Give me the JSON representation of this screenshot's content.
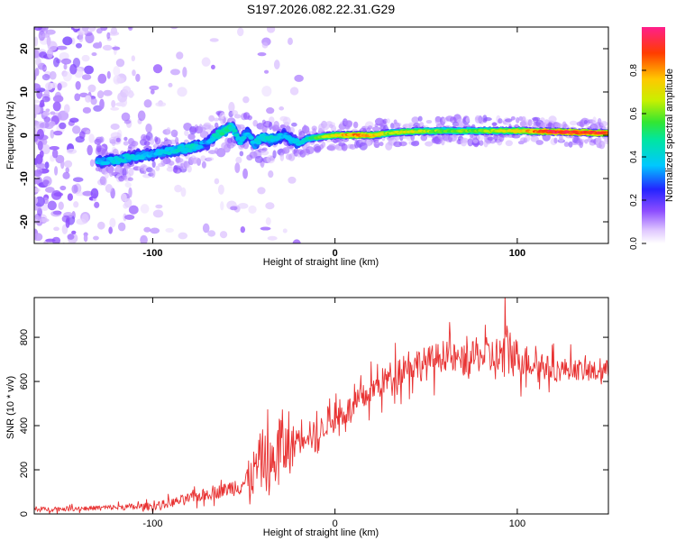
{
  "title": "S197.2026.082.22.31.G29",
  "chart_data": [
    {
      "type": "heatmap",
      "xlabel": "Height of straight line (km)",
      "ylabel": "Frequency (Hz)",
      "xlim": [
        -165,
        150
      ],
      "ylim": [
        -25,
        25
      ],
      "x_ticks": [
        -100,
        0,
        100
      ],
      "y_ticks": [
        -20,
        -10,
        0,
        10,
        20
      ],
      "ridge": {
        "x": [
          -128,
          -118,
          -108,
          -98,
          -88,
          -78,
          -70,
          -66,
          -60,
          -56,
          -52,
          -48,
          -44,
          -40,
          -36,
          -32,
          -28,
          -24,
          -20,
          -15,
          -10,
          0,
          10,
          20,
          30,
          40,
          60,
          80,
          100,
          120,
          150
        ],
        "freq": [
          -6,
          -5.5,
          -4.8,
          -4.2,
          -3.5,
          -2.8,
          -2.0,
          0,
          1.0,
          2.0,
          -1.5,
          0.5,
          -2.0,
          -0.5,
          -1.0,
          -0.5,
          0.0,
          -1.0,
          -2.0,
          -0.8,
          -0.5,
          0,
          0,
          0,
          0.5,
          0.8,
          1.0,
          1.0,
          1.0,
          0.8,
          0.5
        ],
        "amp": [
          0.35,
          0.4,
          0.38,
          0.35,
          0.4,
          0.42,
          0.3,
          0.45,
          0.5,
          0.42,
          0.4,
          0.35,
          0.38,
          0.4,
          0.42,
          0.38,
          0.36,
          0.4,
          0.38,
          0.45,
          0.55,
          0.7,
          0.8,
          0.75,
          0.62,
          0.68,
          0.58,
          0.6,
          0.7,
          0.92,
          0.88
        ]
      },
      "colorbar": {
        "label": "Normalized spectral amplitude",
        "range": [
          0,
          1
        ],
        "ticks": [
          "0.0",
          "0.2",
          "0.4",
          "0.6",
          "0.8"
        ]
      }
    },
    {
      "type": "line",
      "xlabel": "Height of straight line (km)",
      "ylabel": "SNR (10 * v/v)",
      "xlim": [
        -165,
        150
      ],
      "ylim": [
        0,
        980
      ],
      "x_ticks": [
        -100,
        0,
        100
      ],
      "y_ticks": [
        0,
        200,
        400,
        600,
        800
      ],
      "color": "#e83232",
      "series": [
        {
          "name": "SNR",
          "x": [
            -165,
            -140,
            -120,
            -100,
            -90,
            -80,
            -70,
            -60,
            -50,
            -45,
            -40,
            -35,
            -30,
            -25,
            -20,
            -15,
            -10,
            -5,
            0,
            5,
            10,
            20,
            30,
            40,
            50,
            60,
            70,
            80,
            90,
            95,
            100,
            110,
            120,
            130,
            140,
            150
          ],
          "y": [
            20,
            25,
            30,
            35,
            50,
            70,
            90,
            110,
            140,
            180,
            250,
            200,
            320,
            280,
            350,
            380,
            330,
            420,
            430,
            460,
            480,
            560,
            620,
            680,
            680,
            720,
            690,
            720,
            700,
            750,
            710,
            680,
            650,
            660,
            640,
            650
          ],
          "spread": [
            15,
            15,
            18,
            25,
            30,
            35,
            40,
            45,
            80,
            150,
            200,
            180,
            260,
            150,
            120,
            110,
            100,
            100,
            90,
            90,
            90,
            90,
            100,
            110,
            110,
            100,
            100,
            110,
            160,
            200,
            120,
            90,
            80,
            70,
            70,
            70
          ]
        }
      ]
    }
  ]
}
